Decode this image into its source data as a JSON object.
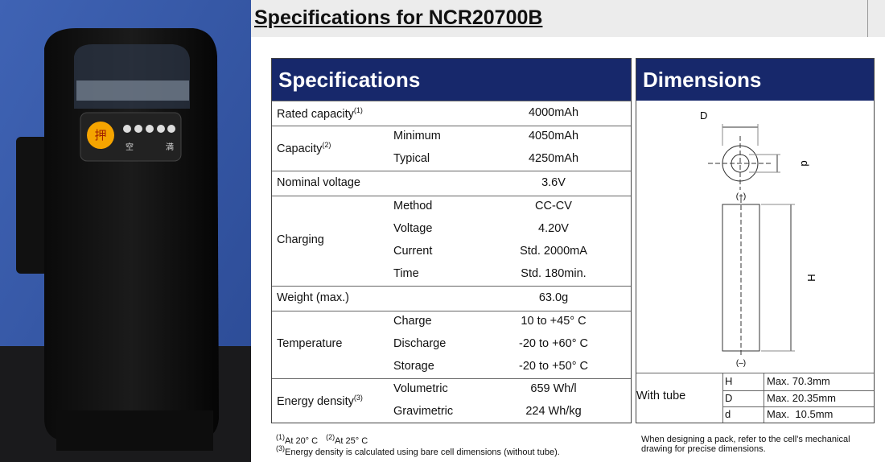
{
  "photo": {
    "button": "押",
    "left_label": "空",
    "right_label": "満"
  },
  "header": {
    "title": "Specifications for NCR20700B"
  },
  "specifications": {
    "title": "Specifications",
    "rows": [
      {
        "label": "Rated capacity",
        "note": "(1)",
        "value": "4000mAh"
      },
      {
        "label": "Capacity",
        "note": "(2)",
        "items": [
          {
            "name": "Minimum",
            "value": "4050mAh"
          },
          {
            "name": "Typical",
            "value": "4250mAh"
          }
        ]
      },
      {
        "label": "Nominal voltage",
        "value": "3.6V"
      },
      {
        "label": "Charging",
        "items": [
          {
            "name": "Method",
            "value": "CC-CV"
          },
          {
            "name": "Voltage",
            "value": "4.20V"
          },
          {
            "name": "Current",
            "value": "Std. 2000mA"
          },
          {
            "name": "Time",
            "value": "Std. 180min."
          }
        ]
      },
      {
        "label": "Weight (max.)",
        "value": "63.0g"
      },
      {
        "label": "Temperature",
        "items": [
          {
            "name": "Charge",
            "value": "10 to +45° C"
          },
          {
            "name": "Discharge",
            "value": "-20 to +60° C"
          },
          {
            "name": "Storage",
            "value": "-20 to +50° C"
          }
        ]
      },
      {
        "label": "Energy density",
        "note": "(3)",
        "items": [
          {
            "name": "Volumetric",
            "value": "659 Wh/l"
          },
          {
            "name": "Gravimetric",
            "value": "224 Wh/kg"
          }
        ]
      }
    ],
    "footnotes": [
      [
        {
          "sup": "(1)",
          "text": "At 20° C"
        },
        {
          "sup": "(2)",
          "text": "At 25° C"
        }
      ],
      [
        {
          "sup": "(3)",
          "text": "Energy density is calculated using bare cell dimensions (without tube)."
        }
      ]
    ]
  },
  "dimensions": {
    "title": "Dimensions",
    "drawing": {
      "D": "D",
      "d": "d",
      "H": "H",
      "plus": "(+)",
      "minus": "(–)"
    },
    "table_label": "With tube",
    "rows": [
      {
        "symbol": "H",
        "value": "Max. 70.3mm"
      },
      {
        "symbol": "D",
        "value": "Max. 20.35mm"
      },
      {
        "symbol": "d",
        "value": "Max.  10.5mm"
      }
    ],
    "note": "When designing a pack, refer to the cell's mechanical drawing for precise dimensions."
  }
}
